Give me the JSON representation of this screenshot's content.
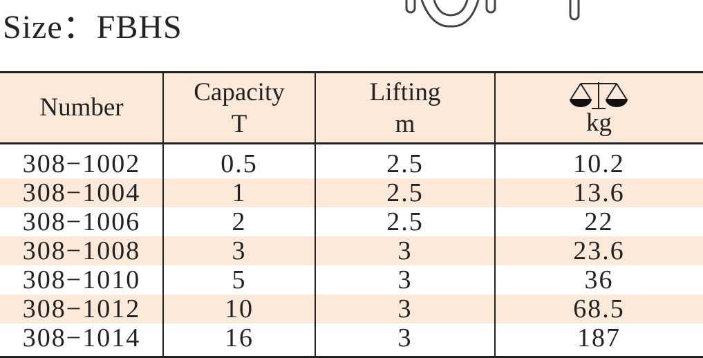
{
  "title": "Size：FBHS",
  "table": {
    "header": [
      [
        "Number"
      ],
      [
        "Capacity",
        "T"
      ],
      [
        "Lifting",
        "m"
      ],
      [
        "kg"
      ]
    ],
    "rows": [
      [
        "308−1002",
        0.5,
        2.5,
        10.2
      ],
      [
        "308−1004",
        1,
        2.5,
        13.6
      ],
      [
        "308−1006",
        2,
        2.5,
        22
      ],
      [
        "308−1008",
        3,
        3,
        23.6
      ],
      [
        "308−1010",
        5,
        3,
        36
      ],
      [
        "308−1012",
        10,
        3,
        68.5
      ],
      [
        "308−1014",
        16,
        3,
        187
      ]
    ]
  }
}
